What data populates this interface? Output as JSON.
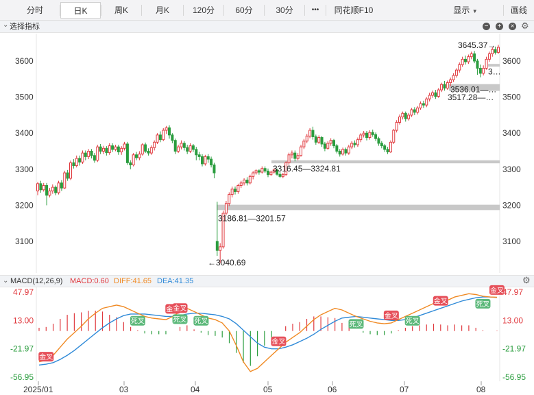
{
  "tabs": {
    "time": "分时",
    "day": "日K",
    "week": "周K",
    "month": "月K",
    "m120": "120分",
    "m60": "60分",
    "m30": "30分",
    "more": "•••",
    "f10": "同花顺F10",
    "display": "显示",
    "draw": "画线"
  },
  "toolbar": {
    "indicator_select": "选择指标"
  },
  "macd_bar": {
    "name": "MACD(12,26,9)",
    "macd": "MACD:0.60",
    "diff": "DIFF:41.65",
    "dea": "DEA:41.35"
  },
  "colors": {
    "up": "#e0393e",
    "down": "#2a9d3e",
    "diff": "#f08a24",
    "dea": "#2f8ad8",
    "gap_band": "#c8c8c8",
    "golden_badge": "#e6505a",
    "dead_badge": "#5cb87a"
  },
  "chart_data": [
    {
      "type": "candlestick",
      "x_axis": {
        "labels": [
          "2025/01",
          "03",
          "04",
          "05",
          "06",
          "07",
          "08"
        ]
      },
      "y_axis": {
        "ticks": [
          3100,
          3200,
          3300,
          3400,
          3500,
          3600
        ],
        "range": [
          3040,
          3660
        ]
      },
      "candles": [
        [
          3240,
          3260,
          3228,
          3265
        ],
        [
          3260,
          3243,
          3235,
          3268
        ],
        [
          3243,
          3255,
          3238,
          3262
        ],
        [
          3255,
          3228,
          3200,
          3262
        ],
        [
          3228,
          3240,
          3222,
          3248
        ],
        [
          3240,
          3250,
          3232,
          3258
        ],
        [
          3250,
          3235,
          3228,
          3255
        ],
        [
          3235,
          3262,
          3230,
          3268
        ],
        [
          3262,
          3248,
          3240,
          3270
        ],
        [
          3248,
          3290,
          3245,
          3296
        ],
        [
          3290,
          3275,
          3268,
          3298
        ],
        [
          3275,
          3318,
          3270,
          3324
        ],
        [
          3318,
          3310,
          3302,
          3328
        ],
        [
          3310,
          3330,
          3305,
          3338
        ],
        [
          3330,
          3320,
          3310,
          3338
        ],
        [
          3320,
          3345,
          3315,
          3352
        ],
        [
          3345,
          3335,
          3325,
          3352
        ],
        [
          3335,
          3350,
          3328,
          3356
        ],
        [
          3350,
          3338,
          3330,
          3356
        ],
        [
          3338,
          3325,
          3318,
          3345
        ],
        [
          3325,
          3362,
          3320,
          3368
        ],
        [
          3362,
          3350,
          3342,
          3370
        ],
        [
          3350,
          3358,
          3342,
          3365
        ],
        [
          3358,
          3346,
          3338,
          3364
        ],
        [
          3346,
          3365,
          3340,
          3372
        ],
        [
          3365,
          3355,
          3348,
          3372
        ],
        [
          3355,
          3362,
          3350,
          3368
        ],
        [
          3362,
          3348,
          3340,
          3368
        ],
        [
          3348,
          3358,
          3340,
          3364
        ],
        [
          3358,
          3370,
          3352,
          3376
        ],
        [
          3370,
          3318,
          3312,
          3376
        ],
        [
          3318,
          3312,
          3300,
          3325
        ],
        [
          3312,
          3340,
          3308,
          3345
        ],
        [
          3340,
          3332,
          3325,
          3348
        ],
        [
          3332,
          3342,
          3325,
          3350
        ],
        [
          3342,
          3368,
          3338,
          3372
        ],
        [
          3368,
          3350,
          3345,
          3374
        ],
        [
          3350,
          3345,
          3338,
          3358
        ],
        [
          3345,
          3360,
          3340,
          3366
        ],
        [
          3360,
          3375,
          3352,
          3380
        ],
        [
          3375,
          3395,
          3370,
          3400
        ],
        [
          3395,
          3382,
          3375,
          3405
        ],
        [
          3382,
          3408,
          3378,
          3414
        ],
        [
          3408,
          3415,
          3398,
          3420
        ],
        [
          3415,
          3395,
          3385,
          3422
        ],
        [
          3395,
          3380,
          3372,
          3400
        ],
        [
          3380,
          3350,
          3342,
          3385
        ],
        [
          3350,
          3362,
          3345,
          3368
        ],
        [
          3362,
          3372,
          3355,
          3380
        ],
        [
          3372,
          3360,
          3352,
          3378
        ],
        [
          3360,
          3350,
          3342,
          3368
        ],
        [
          3350,
          3365,
          3345,
          3372
        ],
        [
          3365,
          3355,
          3348,
          3370
        ],
        [
          3355,
          3340,
          3325,
          3362
        ],
        [
          3340,
          3335,
          3325,
          3348
        ],
        [
          3335,
          3315,
          3308,
          3342
        ],
        [
          3315,
          3335,
          3310,
          3340
        ],
        [
          3335,
          3328,
          3318,
          3342
        ],
        [
          3328,
          3312,
          3305,
          3335
        ],
        [
          3312,
          3290,
          3275,
          3318
        ],
        [
          3100,
          3075,
          3060,
          3210
        ],
        [
          3075,
          3085,
          3040,
          3095
        ],
        [
          3085,
          3178,
          3080,
          3185
        ],
        [
          3178,
          3205,
          3172,
          3212
        ],
        [
          3205,
          3230,
          3198,
          3236
        ],
        [
          3230,
          3245,
          3222,
          3252
        ],
        [
          3245,
          3238,
          3230,
          3252
        ],
        [
          3238,
          3255,
          3232,
          3260
        ],
        [
          3255,
          3262,
          3248,
          3268
        ],
        [
          3262,
          3270,
          3255,
          3275
        ],
        [
          3270,
          3262,
          3255,
          3278
        ],
        [
          3262,
          3280,
          3258,
          3285
        ],
        [
          3280,
          3290,
          3272,
          3295
        ],
        [
          3290,
          3296,
          3285,
          3300
        ],
        [
          3296,
          3292,
          3285,
          3300
        ],
        [
          3292,
          3302,
          3288,
          3308
        ],
        [
          3302,
          3295,
          3290,
          3308
        ],
        [
          3295,
          3285,
          3278,
          3302
        ],
        [
          3285,
          3292,
          3282,
          3296
        ],
        [
          3292,
          3298,
          3288,
          3302
        ],
        [
          3298,
          3286,
          3282,
          3302
        ],
        [
          3286,
          3280,
          3276,
          3292
        ],
        [
          3280,
          3285,
          3275,
          3290
        ],
        [
          3285,
          3318,
          3282,
          3322
        ],
        [
          3318,
          3340,
          3312,
          3346
        ],
        [
          3340,
          3345,
          3330,
          3352
        ],
        [
          3345,
          3330,
          3322,
          3352
        ],
        [
          3330,
          3338,
          3325,
          3345
        ],
        [
          3338,
          3362,
          3335,
          3368
        ],
        [
          3362,
          3378,
          3356,
          3384
        ],
        [
          3378,
          3392,
          3372,
          3398
        ],
        [
          3392,
          3408,
          3386,
          3414
        ],
        [
          3408,
          3390,
          3382,
          3418
        ],
        [
          3390,
          3375,
          3368,
          3396
        ],
        [
          3375,
          3388,
          3370,
          3394
        ],
        [
          3388,
          3370,
          3362,
          3392
        ],
        [
          3370,
          3358,
          3350,
          3376
        ],
        [
          3358,
          3372,
          3354,
          3378
        ],
        [
          3372,
          3380,
          3365,
          3386
        ],
        [
          3380,
          3365,
          3358,
          3384
        ],
        [
          3365,
          3350,
          3344,
          3370
        ],
        [
          3350,
          3342,
          3335,
          3356
        ],
        [
          3342,
          3355,
          3338,
          3360
        ],
        [
          3355,
          3345,
          3338,
          3360
        ],
        [
          3345,
          3362,
          3340,
          3368
        ],
        [
          3362,
          3372,
          3356,
          3378
        ],
        [
          3372,
          3368,
          3360,
          3380
        ],
        [
          3368,
          3382,
          3362,
          3388
        ],
        [
          3382,
          3395,
          3375,
          3400
        ],
        [
          3395,
          3400,
          3388,
          3406
        ],
        [
          3400,
          3388,
          3380,
          3406
        ],
        [
          3388,
          3402,
          3382,
          3408
        ],
        [
          3402,
          3396,
          3390,
          3410
        ],
        [
          3396,
          3385,
          3378,
          3402
        ],
        [
          3385,
          3372,
          3365,
          3390
        ],
        [
          3372,
          3365,
          3358,
          3378
        ],
        [
          3365,
          3355,
          3348,
          3370
        ],
        [
          3355,
          3348,
          3342,
          3362
        ],
        [
          3348,
          3375,
          3345,
          3380
        ],
        [
          3375,
          3408,
          3370,
          3412
        ],
        [
          3408,
          3430,
          3402,
          3436
        ],
        [
          3430,
          3445,
          3424,
          3452
        ],
        [
          3445,
          3455,
          3438,
          3460
        ],
        [
          3455,
          3440,
          3432,
          3460
        ],
        [
          3440,
          3450,
          3435,
          3456
        ],
        [
          3450,
          3465,
          3445,
          3470
        ],
        [
          3465,
          3458,
          3450,
          3472
        ],
        [
          3458,
          3470,
          3452,
          3475
        ],
        [
          3470,
          3482,
          3465,
          3488
        ],
        [
          3482,
          3478,
          3470,
          3490
        ],
        [
          3478,
          3495,
          3472,
          3500
        ],
        [
          3495,
          3505,
          3488,
          3512
        ],
        [
          3505,
          3512,
          3498,
          3518
        ],
        [
          3512,
          3502,
          3495,
          3520
        ],
        [
          3502,
          3520,
          3498,
          3525
        ],
        [
          3520,
          3535,
          3514,
          3540
        ],
        [
          3535,
          3525,
          3518,
          3545
        ],
        [
          3525,
          3540,
          3520,
          3546
        ],
        [
          3540,
          3548,
          3530,
          3554
        ],
        [
          3548,
          3560,
          3542,
          3566
        ],
        [
          3560,
          3575,
          3554,
          3580
        ],
        [
          3575,
          3590,
          3568,
          3596
        ],
        [
          3590,
          3605,
          3584,
          3612
        ],
        [
          3605,
          3598,
          3590,
          3615
        ],
        [
          3598,
          3612,
          3592,
          3618
        ],
        [
          3612,
          3620,
          3605,
          3626
        ],
        [
          3620,
          3600,
          3594,
          3628
        ],
        [
          3600,
          3580,
          3562,
          3606
        ],
        [
          3580,
          3566,
          3555,
          3590
        ],
        [
          3566,
          3580,
          3560,
          3588
        ],
        [
          3580,
          3605,
          3576,
          3612
        ],
        [
          3605,
          3620,
          3598,
          3626
        ],
        [
          3620,
          3632,
          3612,
          3638
        ],
        [
          3632,
          3624,
          3618,
          3640
        ],
        [
          3624,
          3638,
          3620,
          3645
        ]
      ],
      "gap_bands": [
        {
          "low": 3186.81,
          "high": 3201.57,
          "label": "3186.81—3201.57"
        },
        {
          "low": 3316.45,
          "high": 3324.81,
          "label": "3316.45—3324.81"
        },
        {
          "low": 3517.28,
          "high": 3536.01,
          "label": "3536.01—…"
        },
        {
          "low": 3590,
          "high": 3592,
          "label": "3…"
        }
      ],
      "annotations": [
        {
          "label": "3645.37→",
          "value": 3645.37
        },
        {
          "label": "←3040.69",
          "value": 3040.69
        },
        {
          "label": "3517.28—…",
          "value": 3517.28
        }
      ]
    },
    {
      "type": "macd",
      "params": "MACD(12,26,9)",
      "y_axis": {
        "ticks": [
          47.97,
          13.0,
          -21.97,
          -56.95
        ],
        "range": [
          -56.95,
          47.97
        ]
      },
      "diff": [
        -38,
        -36,
        -30,
        -20,
        -10,
        -2,
        6,
        15,
        22,
        28,
        30,
        32,
        30,
        26,
        22,
        18,
        16,
        15,
        14,
        18,
        24,
        28,
        24,
        20,
        16,
        14,
        10,
        0,
        -18,
        -38,
        -50,
        -46,
        -38,
        -30,
        -22,
        -14,
        -8,
        -2,
        6,
        14,
        20,
        24,
        28,
        26,
        22,
        18,
        15,
        12,
        10,
        9,
        10,
        14,
        18,
        22,
        26,
        30,
        34,
        36,
        38,
        42,
        44,
        46,
        45,
        43,
        42,
        41.65
      ],
      "dea": [
        -42,
        -41,
        -39,
        -35,
        -30,
        -24,
        -17,
        -10,
        -3,
        4,
        10,
        15,
        19,
        21,
        21,
        21,
        20,
        19,
        18,
        18,
        19,
        21,
        22,
        22,
        21,
        20,
        18,
        15,
        9,
        1,
        -7,
        -15,
        -20,
        -22,
        -22,
        -20,
        -17,
        -13,
        -9,
        -4,
        2,
        7,
        12,
        16,
        17,
        18,
        17,
        16,
        15,
        14,
        13,
        13,
        14,
        16,
        19,
        22,
        25,
        28,
        31,
        34,
        37,
        39,
        41,
        42,
        42,
        41.35
      ],
      "histogram": [
        4,
        5,
        9,
        15,
        20,
        22,
        23,
        25,
        25,
        24,
        20,
        17,
        11,
        5,
        1,
        -3,
        -4,
        -4,
        -4,
        0,
        5,
        7,
        2,
        -2,
        -5,
        -6,
        -8,
        -15,
        -27,
        -39,
        -43,
        -31,
        -18,
        -8,
        0,
        6,
        9,
        11,
        15,
        18,
        18,
        17,
        16,
        10,
        5,
        0,
        -2,
        -4,
        -5,
        -5,
        -3,
        1,
        4,
        6,
        7,
        8,
        9,
        8,
        7,
        8,
        7,
        7,
        4,
        1,
        0,
        0.6
      ],
      "crosses": [
        {
          "label": "金叉",
          "kind": "golden",
          "i": 1
        },
        {
          "label": "金叉",
          "kind": "golden",
          "i": 19
        },
        {
          "label": "金叉",
          "kind": "golden",
          "i": 20
        },
        {
          "label": "死叉",
          "kind": "dead",
          "i": 14
        },
        {
          "label": "死叉",
          "kind": "dead",
          "i": 20
        },
        {
          "label": "死叉",
          "kind": "dead",
          "i": 23
        },
        {
          "label": "金叉",
          "kind": "golden",
          "i": 34
        },
        {
          "label": "死叉",
          "kind": "dead",
          "i": 45
        },
        {
          "label": "金叉",
          "kind": "golden",
          "i": 50
        },
        {
          "label": "死叉",
          "kind": "dead",
          "i": 53
        },
        {
          "label": "金叉",
          "kind": "golden",
          "i": 57
        },
        {
          "label": "死叉",
          "kind": "dead",
          "i": 63
        },
        {
          "label": "金叉",
          "kind": "golden",
          "i": 65
        }
      ]
    }
  ]
}
